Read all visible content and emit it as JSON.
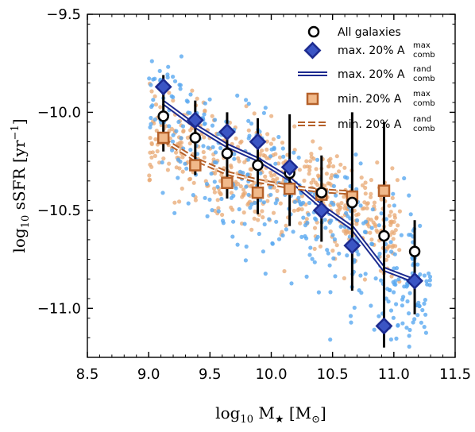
{
  "chart_data": {
    "type": "scatter",
    "xlabel_prefix": "log",
    "xlabel_sub": "10",
    "xlabel_main": " M",
    "xlabel_star": "★",
    "xlabel_unit_open": " [M",
    "xlabel_unit_sub": "⊙",
    "xlabel_unit_close": "]",
    "ylabel_prefix": "log",
    "ylabel_sub": "10",
    "ylabel_main": " sSFR [yr",
    "ylabel_sup": "−1",
    "ylabel_close": "]",
    "xlim": [
      8.5,
      11.5
    ],
    "ylim": [
      -11.25,
      -9.5
    ],
    "x_ticks": [
      8.5,
      9.0,
      9.5,
      10.0,
      10.5,
      11.0,
      11.5
    ],
    "x_tick_labels": [
      "8.5",
      "9.0",
      "9.5",
      "10.0",
      "10.5",
      "11.0",
      "11.5"
    ],
    "y_ticks": [
      -9.5,
      -10.0,
      -10.5,
      -11.0
    ],
    "y_tick_labels": [
      "−9.5",
      "−10.0",
      "−10.5",
      "−11.0"
    ],
    "legend_position": "top-right",
    "legend": [
      {
        "main": "All galaxies",
        "sup": "",
        "sub": ""
      },
      {
        "main": "max. 20% A",
        "sup": "max",
        "sub": "comb"
      },
      {
        "main": "max. 20% A",
        "sup": "rand",
        "sub": "comb"
      },
      {
        "main": "min. 20% A",
        "sup": "max",
        "sub": "comb"
      },
      {
        "main": "min. 20% A",
        "sup": "rand",
        "sub": "comb"
      }
    ],
    "colors": {
      "blue_points": "#5aa9f0",
      "orange_points": "#e8a873",
      "navy": "#1c2a8f",
      "brown": "#b5612a",
      "black": "#000000"
    },
    "series": [
      {
        "name": "All galaxies",
        "x": [
          9.12,
          9.38,
          9.64,
          9.89,
          10.15,
          10.41,
          10.66,
          10.92,
          11.17
        ],
        "y": [
          -10.02,
          -10.13,
          -10.21,
          -10.27,
          -10.31,
          -10.41,
          -10.46,
          -10.63,
          -10.71
        ],
        "y_err_low": [
          -10.2,
          -10.32,
          -10.44,
          -10.52,
          -10.58,
          -10.66,
          -10.91,
          -11.2,
          -11.03
        ],
        "y_err_high": [
          -9.81,
          -9.94,
          -10.0,
          -10.03,
          -10.01,
          -10.22,
          -10.0,
          -10.05,
          -10.55
        ]
      },
      {
        "name": "max. 20% A comb max",
        "x": [
          9.12,
          9.38,
          9.64,
          9.89,
          10.15,
          10.41,
          10.66,
          10.92,
          11.17
        ],
        "y": [
          -9.87,
          -10.04,
          -10.1,
          -10.15,
          -10.28,
          -10.5,
          -10.68,
          -11.09,
          -10.86
        ]
      },
      {
        "name": "max. 20% A comb rand",
        "x": [
          9.12,
          9.38,
          9.64,
          9.89,
          10.15,
          10.41,
          10.66,
          10.92,
          11.17
        ],
        "y": [
          -9.95,
          -10.07,
          -10.17,
          -10.24,
          -10.34,
          -10.48,
          -10.59,
          -10.8,
          -10.86
        ]
      },
      {
        "name": "min. 20% A comb max",
        "x": [
          9.12,
          9.38,
          9.64,
          9.89,
          10.15,
          10.41,
          10.66,
          10.92
        ],
        "y": [
          -10.13,
          -10.27,
          -10.36,
          -10.41,
          -10.39,
          -10.42,
          -10.43,
          -10.4
        ]
      },
      {
        "name": "min. 20% A comb rand",
        "x": [
          9.12,
          9.38,
          9.64,
          9.89,
          10.15,
          10.41,
          10.66
        ],
        "y": [
          -10.14,
          -10.24,
          -10.31,
          -10.35,
          -10.38,
          -10.4,
          -10.41
        ]
      }
    ]
  }
}
